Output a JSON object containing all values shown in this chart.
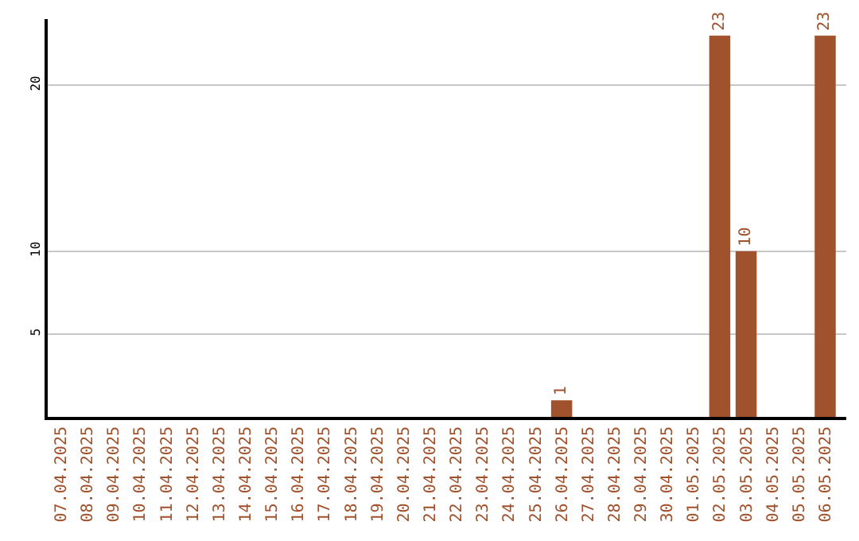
{
  "chart_data": {
    "type": "bar",
    "categories": [
      "07.04.2025",
      "08.04.2025",
      "09.04.2025",
      "10.04.2025",
      "11.04.2025",
      "12.04.2025",
      "13.04.2025",
      "14.04.2025",
      "15.04.2025",
      "16.04.2025",
      "17.04.2025",
      "18.04.2025",
      "19.04.2025",
      "20.04.2025",
      "21.04.2025",
      "22.04.2025",
      "23.04.2025",
      "24.04.2025",
      "25.04.2025",
      "26.04.2025",
      "27.04.2025",
      "28.04.2025",
      "29.04.2025",
      "30.04.2025",
      "01.05.2025",
      "02.05.2025",
      "03.05.2025",
      "04.05.2025",
      "05.05.2025",
      "06.05.2025"
    ],
    "values": [
      null,
      null,
      null,
      null,
      null,
      null,
      null,
      null,
      null,
      null,
      null,
      null,
      null,
      null,
      null,
      null,
      null,
      null,
      null,
      1,
      null,
      null,
      null,
      null,
      null,
      23,
      10,
      null,
      null,
      23
    ],
    "color": "#a0522d",
    "ylim": [
      0,
      24
    ],
    "yticks": [
      5,
      10,
      20
    ],
    "grid": "y",
    "data_labels": true
  }
}
